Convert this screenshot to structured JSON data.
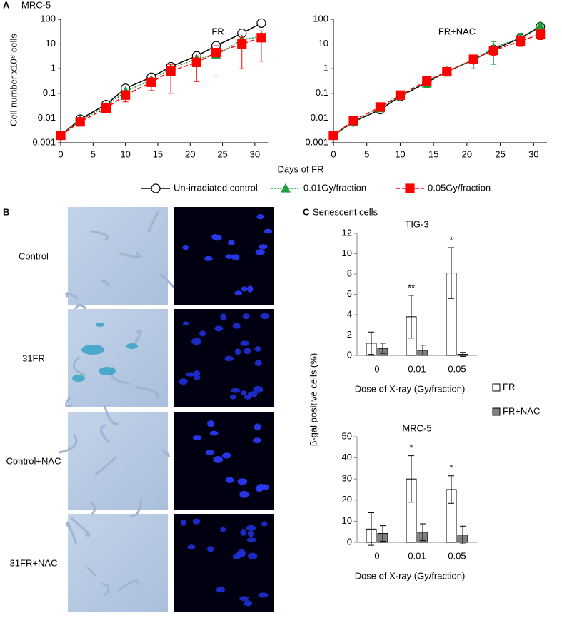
{
  "panel_a": {
    "label": "A",
    "title": "MRC-5",
    "y_label": "Cell number x10⁸ cells",
    "x_label": "Days of FR"
  },
  "panel_b": {
    "label": "B",
    "rows": [
      "Control",
      "31FR",
      "Control+NAC",
      "31FR+NAC"
    ]
  },
  "panel_c": {
    "label": "C",
    "title": "Senescent cells",
    "y_label": "β-gal positive cells (%)"
  },
  "chart_data": [
    {
      "type": "line",
      "title": "FR",
      "log_y": true,
      "x": [
        0,
        3,
        7,
        10,
        14,
        17,
        21,
        24,
        28,
        31
      ],
      "xlim": [
        0,
        32
      ],
      "xticks": [
        0,
        5,
        10,
        15,
        20,
        25,
        30
      ],
      "ylim": [
        0.001,
        100
      ],
      "yticks": [
        0.001,
        0.01,
        0.1,
        1,
        10,
        100
      ],
      "series": [
        {
          "name": "Un-irradiated control",
          "color": "#000000",
          "dash": "solid",
          "marker": "circle",
          "values": [
            0.002,
            0.009,
            0.035,
            0.16,
            0.45,
            1.2,
            3.3,
            8.5,
            27,
            70
          ]
        },
        {
          "name": "0.01Gy/fraction",
          "color": "#1e9e3a",
          "dash": "dotted",
          "marker": "triangle",
          "values": [
            0.002,
            0.008,
            0.03,
            0.12,
            0.35,
            1.0,
            2.5,
            3.5,
            15,
            20
          ]
        },
        {
          "name": "0.05Gy/fraction",
          "color": "#ff0000",
          "dash": "dashed",
          "marker": "square",
          "values": [
            0.002,
            0.007,
            0.025,
            0.085,
            0.28,
            0.8,
            1.8,
            4.5,
            10,
            18
          ],
          "errors": [
            0,
            0,
            0.005,
            0.04,
            0.15,
            0.7,
            1.5,
            4,
            9,
            16
          ]
        }
      ]
    },
    {
      "type": "line",
      "title": "FR+NAC",
      "log_y": true,
      "x": [
        0,
        3,
        7,
        10,
        14,
        17,
        21,
        24,
        28,
        31
      ],
      "xlim": [
        0,
        32
      ],
      "xticks": [
        0,
        5,
        10,
        15,
        20,
        25,
        30
      ],
      "ylim": [
        0.001,
        100
      ],
      "yticks": [
        0.001,
        0.01,
        0.1,
        1,
        10,
        100
      ],
      "series": [
        {
          "name": "Un-irradiated control",
          "color": "#000000",
          "dash": "solid",
          "marker": "circle",
          "values": [
            0.002,
            0.007,
            0.022,
            0.075,
            0.28,
            0.75,
            2.3,
            6,
            17,
            50
          ]
        },
        {
          "name": "0.01Gy/fraction",
          "color": "#1e9e3a",
          "dash": "dotted",
          "marker": "triangle",
          "values": [
            0.002,
            0.007,
            0.025,
            0.08,
            0.25,
            0.8,
            2.2,
            7,
            18,
            55
          ],
          "errors": [
            0,
            0,
            0.004,
            0.01,
            0.08,
            0.3,
            1.2,
            5.5,
            9,
            12
          ]
        },
        {
          "name": "0.05Gy/fraction",
          "color": "#ff0000",
          "dash": "dashed",
          "marker": "square",
          "values": [
            0.002,
            0.008,
            0.028,
            0.085,
            0.32,
            0.75,
            2.4,
            5.5,
            13,
            25
          ],
          "errors": [
            0,
            0,
            0.004,
            0.01,
            0.06,
            0.2,
            0.8,
            2,
            5,
            10
          ]
        }
      ]
    },
    {
      "type": "bar",
      "title": "TIG-3",
      "x_label": "Dose of X-ray (Gy/fraction)",
      "categories": [
        "0",
        "0.01",
        "0.05"
      ],
      "ylim": [
        0,
        12
      ],
      "yticks": [
        0,
        2,
        4,
        6,
        8,
        10,
        12
      ],
      "series": [
        {
          "name": "FR",
          "color": "#ffffff",
          "values": [
            1.2,
            3.8,
            8.1
          ],
          "errors": [
            1.1,
            2.1,
            2.5
          ]
        },
        {
          "name": "FR+NAC",
          "color": "#808080",
          "values": [
            0.7,
            0.5,
            0.1
          ],
          "errors": [
            0.5,
            0.5,
            0.2
          ]
        }
      ],
      "annotations": [
        {
          "text": "**",
          "x": "0.01"
        },
        {
          "text": "*",
          "x": "0.05"
        }
      ]
    },
    {
      "type": "bar",
      "title": "MRC-5",
      "x_label": "Dose of X-ray (Gy/fraction)",
      "categories": [
        "0",
        "0.01",
        "0.05"
      ],
      "ylim": [
        0,
        50
      ],
      "yticks": [
        0,
        10,
        20,
        30,
        40,
        50
      ],
      "series": [
        {
          "name": "FR",
          "color": "#ffffff",
          "values": [
            6.3,
            30,
            25
          ],
          "errors": [
            7.7,
            11,
            6.5
          ]
        },
        {
          "name": "FR+NAC",
          "color": "#808080",
          "values": [
            4.2,
            4.8,
            3.5
          ],
          "errors": [
            3.7,
            4,
            4.2
          ]
        }
      ],
      "annotations": [
        {
          "text": "*",
          "x": "0.01"
        },
        {
          "text": "*",
          "x": "0.05"
        }
      ]
    }
  ]
}
